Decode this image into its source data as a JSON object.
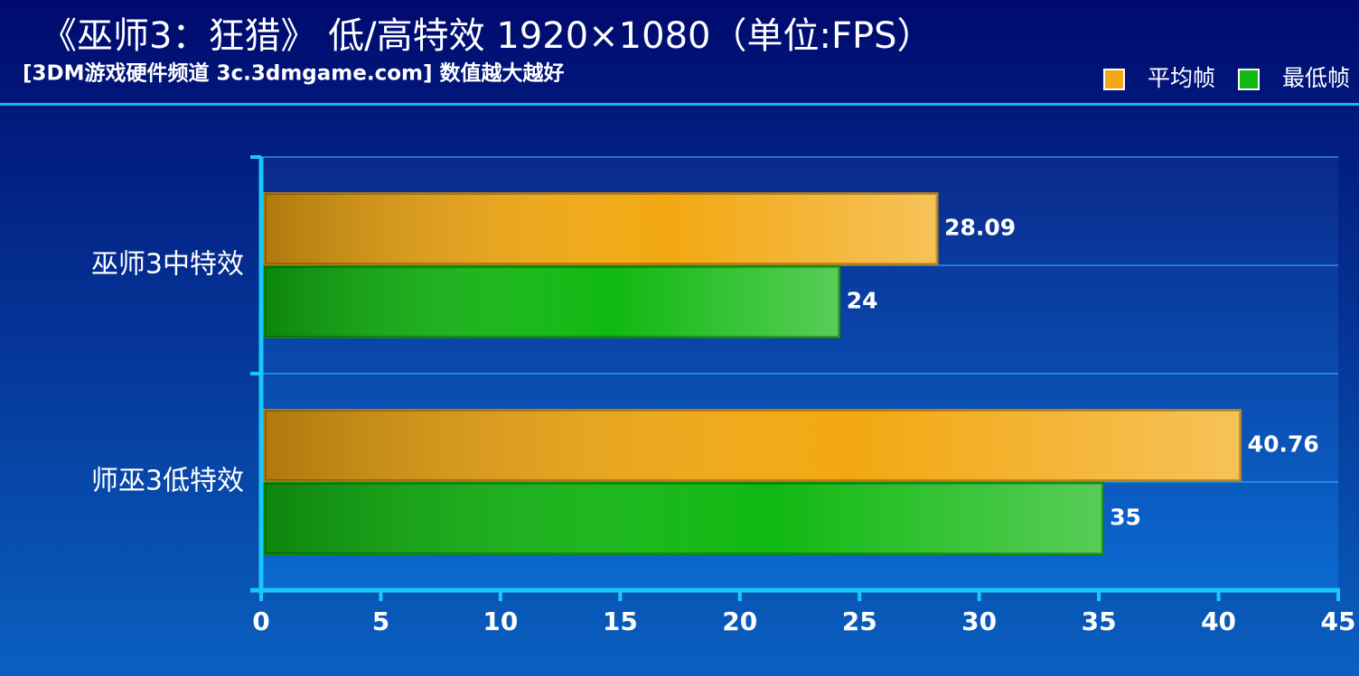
{
  "chart_data": {
    "type": "hbar",
    "title": "《巫师3：狂猎》 低/高特效 1920×1080（单位:FPS）",
    "subtitle": "[3DM游戏硬件频道 3c.3dmgame.com] 数值越大越好",
    "categories": [
      "巫师3中特效",
      "师巫3低特效"
    ],
    "series": [
      {
        "name": "平均帧",
        "color": "#f2a812",
        "values": [
          28.09,
          40.76
        ]
      },
      {
        "name": "最低帧",
        "color": "#10b810",
        "values": [
          24,
          35
        ]
      }
    ],
    "xlim": [
      0,
      45
    ],
    "xticks": [
      0,
      5,
      10,
      15,
      20,
      25,
      30,
      35,
      40,
      45
    ],
    "legend": "top-right"
  }
}
